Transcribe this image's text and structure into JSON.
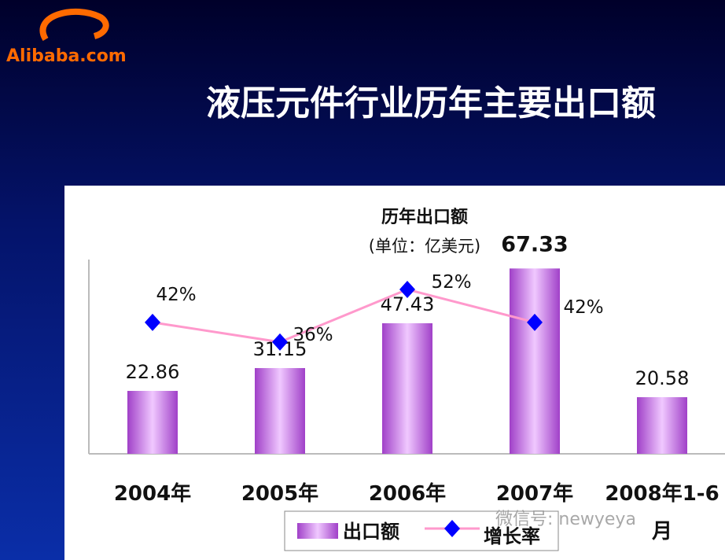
{
  "logo": "Alibaba.com",
  "slide_title": "液压元件行业历年主要出口额",
  "watermark": "微信号: newyeya",
  "chart_data": {
    "type": "bar",
    "title": "历年出口额",
    "subtitle": "(单位：亿美元)",
    "categories": [
      "2004年",
      "2005年",
      "2006年",
      "2007年",
      "2008年1-6月"
    ],
    "ylim": [
      0,
      80
    ],
    "y2lim": [
      2,
      69
    ],
    "series": [
      {
        "name": "出口额",
        "type": "bar",
        "color": "#a040c8",
        "values": [
          22.86,
          31.15,
          47.43,
          67.33,
          20.58
        ]
      },
      {
        "name": "增长率",
        "type": "line",
        "axis": "y2",
        "color": "#ff99cc",
        "marker_color": "#0000ff",
        "values": [
          42,
          36,
          52,
          42,
          null
        ],
        "value_labels": [
          "42%",
          "36%",
          "52%",
          "42%",
          null
        ]
      }
    ]
  }
}
